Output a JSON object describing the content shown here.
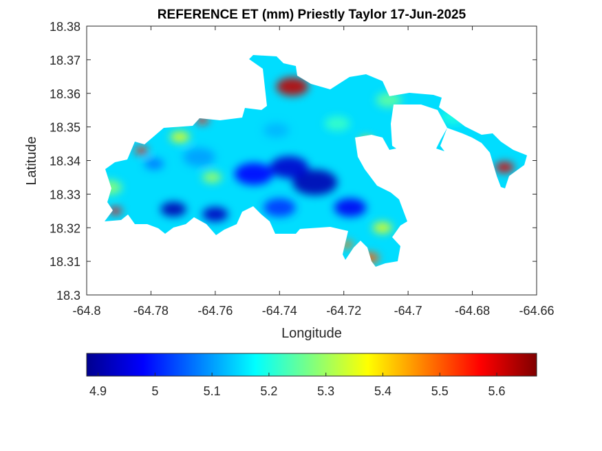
{
  "chart_data": {
    "type": "heatmap",
    "title": "REFERENCE ET (mm) Priestly Taylor 17-Jun-2025",
    "xlabel": "Longitude",
    "ylabel": "Latitude",
    "xlim": [
      -64.8,
      -64.66
    ],
    "ylim": [
      18.3,
      18.38
    ],
    "x_ticks": [
      "-64.8",
      "-64.78",
      "-64.76",
      "-64.74",
      "-64.72",
      "-64.7",
      "-64.68",
      "-64.66"
    ],
    "y_ticks": [
      "18.3",
      "18.31",
      "18.32",
      "18.33",
      "18.34",
      "18.35",
      "18.36",
      "18.37",
      "18.38"
    ],
    "grid": false,
    "colormap": "jet",
    "colorbar": {
      "location": "bottom",
      "clim": [
        4.88,
        5.67
      ],
      "ticks": [
        "4.9",
        "5",
        "5.1",
        "5.2",
        "5.3",
        "5.4",
        "5.5",
        "5.6"
      ]
    },
    "blobs": [
      {
        "lon": -64.729,
        "lat": 18.3335,
        "r": 0.007,
        "value": 4.92
      },
      {
        "lon": -64.737,
        "lat": 18.338,
        "r": 0.006,
        "value": 4.94
      },
      {
        "lon": -64.748,
        "lat": 18.336,
        "r": 0.006,
        "value": 4.98
      },
      {
        "lon": -64.773,
        "lat": 18.3255,
        "r": 0.004,
        "value": 4.92
      },
      {
        "lon": -64.76,
        "lat": 18.324,
        "r": 0.004,
        "value": 4.93
      },
      {
        "lon": -64.718,
        "lat": 18.326,
        "r": 0.005,
        "value": 4.97
      },
      {
        "lon": -64.74,
        "lat": 18.326,
        "r": 0.005,
        "value": 5.02
      },
      {
        "lon": -64.765,
        "lat": 18.341,
        "r": 0.005,
        "value": 5.1
      },
      {
        "lon": -64.741,
        "lat": 18.349,
        "r": 0.004,
        "value": 5.12
      },
      {
        "lon": -64.779,
        "lat": 18.339,
        "r": 0.003,
        "value": 5.07
      },
      {
        "lon": -64.722,
        "lat": 18.351,
        "r": 0.004,
        "value": 5.22
      },
      {
        "lon": -64.706,
        "lat": 18.358,
        "r": 0.004,
        "value": 5.25
      },
      {
        "lon": -64.771,
        "lat": 18.347,
        "r": 0.003,
        "value": 5.35
      },
      {
        "lon": -64.793,
        "lat": 18.332,
        "r": 0.004,
        "value": 5.28
      },
      {
        "lon": -64.761,
        "lat": 18.335,
        "r": 0.003,
        "value": 5.3
      },
      {
        "lon": -64.736,
        "lat": 18.362,
        "r": 0.005,
        "value": 5.62
      },
      {
        "lon": -64.783,
        "lat": 18.343,
        "r": 0.002,
        "value": 5.55
      },
      {
        "lon": -64.791,
        "lat": 18.325,
        "r": 0.002,
        "value": 5.58
      },
      {
        "lon": -64.764,
        "lat": 18.352,
        "r": 0.002,
        "value": 5.55
      },
      {
        "lon": -64.712,
        "lat": 18.311,
        "r": 0.003,
        "value": 5.5
      },
      {
        "lon": -64.719,
        "lat": 18.315,
        "r": 0.002,
        "value": 5.48
      },
      {
        "lon": -64.708,
        "lat": 18.32,
        "r": 0.003,
        "value": 5.35
      },
      {
        "lon": -64.67,
        "lat": 18.338,
        "r": 0.003,
        "value": 5.6
      },
      {
        "lon": -64.686,
        "lat": 18.353,
        "r": 0.004,
        "value": 5.2
      },
      {
        "lon": -64.713,
        "lat": 18.346,
        "r": 0.002,
        "value": 5.4
      }
    ],
    "base_value": 5.15
  }
}
